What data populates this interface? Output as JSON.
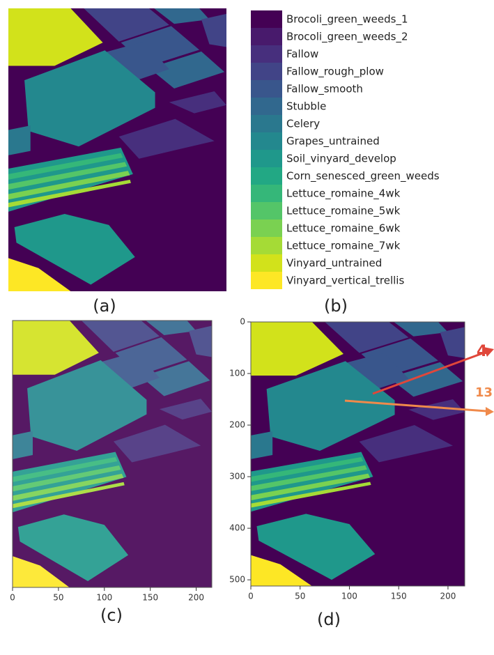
{
  "panels": {
    "a": {
      "caption": "(a)"
    },
    "b": {
      "caption": "(b)",
      "legend": [
        {
          "label": "Brocoli_green_weeds_1",
          "color": "#440154"
        },
        {
          "label": "Brocoli_green_weeds_2",
          "color": "#481a6c"
        },
        {
          "label": "Fallow",
          "color": "#472f7d"
        },
        {
          "label": "Fallow_rough_plow",
          "color": "#414487"
        },
        {
          "label": "Fallow_smooth",
          "color": "#39568c"
        },
        {
          "label": "Stubble",
          "color": "#31688e"
        },
        {
          "label": "Celery",
          "color": "#2a788e"
        },
        {
          "label": "Grapes_untrained",
          "color": "#23888e"
        },
        {
          "label": "Soil_vinyard_develop",
          "color": "#1f988b"
        },
        {
          "label": "Corn_senesced_green_weeds",
          "color": "#22a884"
        },
        {
          "label": "Lettuce_romaine_4wk",
          "color": "#35b779"
        },
        {
          "label": "Lettuce_romaine_5wk",
          "color": "#54c568"
        },
        {
          "label": "Lettuce_romaine_6wk",
          "color": "#7ad151"
        },
        {
          "label": "Lettuce_romaine_7wk",
          "color": "#a5db36"
        },
        {
          "label": "Vinyard_untrained",
          "color": "#d2e21b"
        },
        {
          "label": "Vinyard_vertical_trellis",
          "color": "#fde725"
        }
      ]
    },
    "c": {
      "caption": "(c)",
      "xlim": [
        0,
        217
      ],
      "xticks": [
        0,
        50,
        100,
        150,
        200
      ]
    },
    "d": {
      "caption": "(d)",
      "xlim": [
        0,
        217
      ],
      "ylim": [
        0,
        512
      ],
      "xticks": [
        0,
        50,
        100,
        150,
        200
      ],
      "yticks": [
        0,
        100,
        200,
        300,
        400,
        500
      ]
    }
  },
  "annotations": [
    {
      "label": "4",
      "color": "#e0473a"
    },
    {
      "label": "13",
      "color": "#f08a4b"
    }
  ]
}
